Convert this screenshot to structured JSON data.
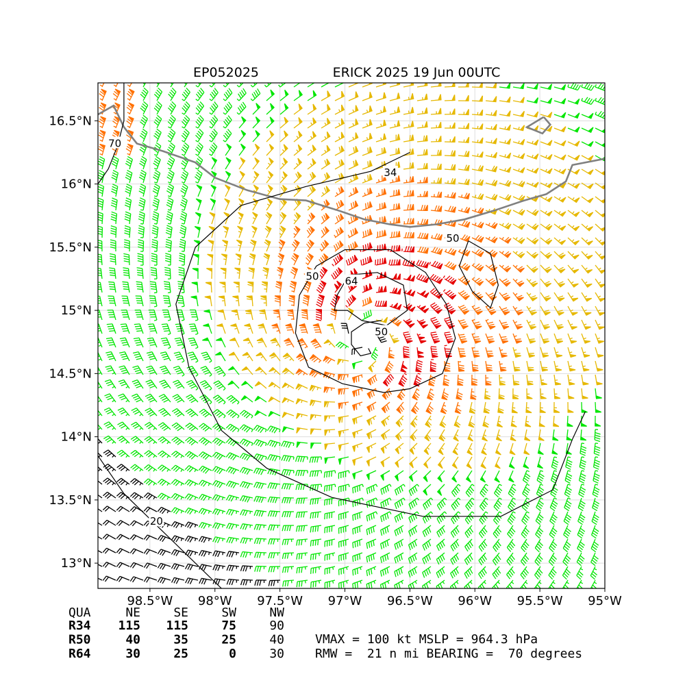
{
  "header": {
    "storm_id": "EP052025",
    "title": "ERICK 2025 19 Jun 00UTC"
  },
  "map": {
    "lon_range": [
      -98.9,
      -95.0
    ],
    "lat_range": [
      12.8,
      16.8
    ],
    "lon_ticks": [
      {
        "value": -98.5,
        "label": "98.5°W"
      },
      {
        "value": -98.0,
        "label": "98°W"
      },
      {
        "value": -97.5,
        "label": "97.5°W"
      },
      {
        "value": -97.0,
        "label": "97°W"
      },
      {
        "value": -96.5,
        "label": "96.5°W"
      },
      {
        "value": -96.0,
        "label": "96°W"
      },
      {
        "value": -95.5,
        "label": "95.5°W"
      },
      {
        "value": -95.0,
        "label": "95°W"
      }
    ],
    "lat_ticks": [
      {
        "value": 16.5,
        "label": "16.5°N"
      },
      {
        "value": 16.0,
        "label": "16°N"
      },
      {
        "value": 15.5,
        "label": "15.5°N"
      },
      {
        "value": 15.0,
        "label": "15°N"
      },
      {
        "value": 14.5,
        "label": "14.5°N"
      },
      {
        "value": 14.0,
        "label": "14°N"
      },
      {
        "value": 13.5,
        "label": "13.5°N"
      },
      {
        "value": 13.0,
        "label": "13°N"
      }
    ],
    "grid": true,
    "storm_center": {
      "lon": -96.85,
      "lat": 14.8
    },
    "coastline": [
      [
        -98.9,
        16.55
      ],
      [
        -98.78,
        16.62
      ],
      [
        -98.7,
        16.45
      ],
      [
        -98.6,
        16.32
      ],
      [
        -98.4,
        16.26
      ],
      [
        -98.15,
        16.17
      ],
      [
        -98.0,
        16.05
      ],
      [
        -97.75,
        15.95
      ],
      [
        -97.5,
        15.88
      ],
      [
        -97.3,
        15.87
      ],
      [
        -97.05,
        15.79
      ],
      [
        -96.85,
        15.72
      ],
      [
        -96.65,
        15.68
      ],
      [
        -96.5,
        15.66
      ],
      [
        -96.3,
        15.68
      ],
      [
        -96.08,
        15.72
      ],
      [
        -95.85,
        15.79
      ],
      [
        -95.62,
        15.87
      ],
      [
        -95.45,
        15.92
      ],
      [
        -95.3,
        16.02
      ],
      [
        -95.25,
        16.15
      ],
      [
        -95.0,
        16.2
      ]
    ],
    "island": [
      [
        -95.47,
        16.53
      ],
      [
        -95.6,
        16.45
      ],
      [
        -95.48,
        16.4
      ],
      [
        -95.42,
        16.47
      ],
      [
        -95.47,
        16.53
      ]
    ],
    "contours": [
      {
        "label": "34",
        "label_at": [
          -96.65,
          16.09
        ],
        "points": [
          [
            -96.5,
            16.25
          ],
          [
            -96.8,
            16.1
          ],
          [
            -97.3,
            15.98
          ],
          [
            -97.8,
            15.83
          ],
          [
            -98.15,
            15.5
          ],
          [
            -98.3,
            15.05
          ],
          [
            -98.2,
            14.55
          ],
          [
            -97.95,
            14.05
          ],
          [
            -97.6,
            13.75
          ],
          [
            -97.1,
            13.52
          ],
          [
            -96.4,
            13.37
          ],
          [
            -95.8,
            13.37
          ],
          [
            -95.4,
            13.58
          ],
          [
            -95.25,
            13.98
          ],
          [
            -95.15,
            14.2
          ]
        ]
      },
      {
        "label": "50",
        "label_at": [
          -97.25,
          15.27
        ],
        "points": [
          [
            -96.65,
            15.48
          ],
          [
            -97.0,
            15.48
          ],
          [
            -97.22,
            15.35
          ],
          [
            -97.35,
            15.12
          ],
          [
            -97.38,
            14.82
          ],
          [
            -97.28,
            14.55
          ],
          [
            -97.02,
            14.42
          ],
          [
            -96.7,
            14.35
          ],
          [
            -96.5,
            14.38
          ],
          [
            -96.25,
            14.5
          ],
          [
            -96.15,
            14.78
          ],
          [
            -96.22,
            15.05
          ],
          [
            -96.38,
            15.3
          ],
          [
            -96.65,
            15.48
          ]
        ]
      },
      {
        "label": "50",
        "label_at": [
          -96.17,
          15.57
        ],
        "points": [
          [
            -96.05,
            15.55
          ],
          [
            -95.88,
            15.45
          ],
          [
            -95.82,
            15.2
          ],
          [
            -95.88,
            15.02
          ],
          [
            -96.02,
            15.15
          ],
          [
            -96.12,
            15.35
          ],
          [
            -96.05,
            15.55
          ]
        ]
      },
      {
        "label": "64",
        "label_at": [
          -96.95,
          15.23
        ],
        "points": [
          [
            -97.06,
            15.12
          ],
          [
            -96.97,
            15.28
          ],
          [
            -96.75,
            15.3
          ],
          [
            -96.55,
            15.2
          ],
          [
            -96.52,
            15.0
          ],
          [
            -96.68,
            14.88
          ],
          [
            -96.87,
            14.92
          ],
          [
            -96.98,
            15.0
          ],
          [
            -97.08,
            15.0
          ],
          [
            -97.06,
            15.12
          ]
        ]
      },
      {
        "label": "50",
        "label_at": [
          -96.72,
          14.83
        ],
        "points": [
          [
            -96.72,
            14.92
          ],
          [
            -96.85,
            14.9
          ],
          [
            -96.95,
            14.83
          ],
          [
            -96.95,
            14.73
          ],
          [
            -96.88,
            14.64
          ],
          [
            -96.8,
            14.66
          ],
          [
            -96.82,
            14.7
          ]
        ]
      },
      {
        "label": "70",
        "label_at": [
          -98.77,
          16.32
        ],
        "points": [
          [
            -98.9,
            16.0
          ],
          [
            -98.82,
            16.12
          ],
          [
            -98.75,
            16.3
          ],
          [
            -98.7,
            16.5
          ],
          [
            -98.7,
            16.8
          ]
        ]
      },
      {
        "label": "20",
        "label_at": [
          -98.45,
          13.33
        ],
        "points": [
          [
            -98.9,
            13.85
          ],
          [
            -98.7,
            13.55
          ],
          [
            -98.45,
            13.3
          ],
          [
            -98.2,
            13.05
          ],
          [
            -97.95,
            12.8
          ]
        ]
      }
    ]
  },
  "stats": {
    "table": {
      "headers": [
        "QUA",
        "NE",
        "SE",
        "SW",
        "NW"
      ],
      "rows": [
        {
          "name": "R34",
          "values": [
            "115",
            "115",
            "75",
            "90"
          ]
        },
        {
          "name": "R50",
          "values": [
            "40",
            "35",
            "25",
            "40"
          ]
        },
        {
          "name": "R64",
          "values": [
            "30",
            "25",
            "0",
            "30"
          ]
        }
      ]
    },
    "line1": "VMAX = 100 kt MSLP = 964.3 hPa",
    "line2": "RMW =  21 n mi BEARING =  70 degrees"
  },
  "colors": {
    "calm": "#000000",
    "tropical_storm": "#00e600",
    "gale_50": "#e6b800",
    "hurricane": "#ff7000",
    "major": "#e60000",
    "contour": "#000000",
    "coast": "#808080",
    "grid": "#dddddd"
  }
}
